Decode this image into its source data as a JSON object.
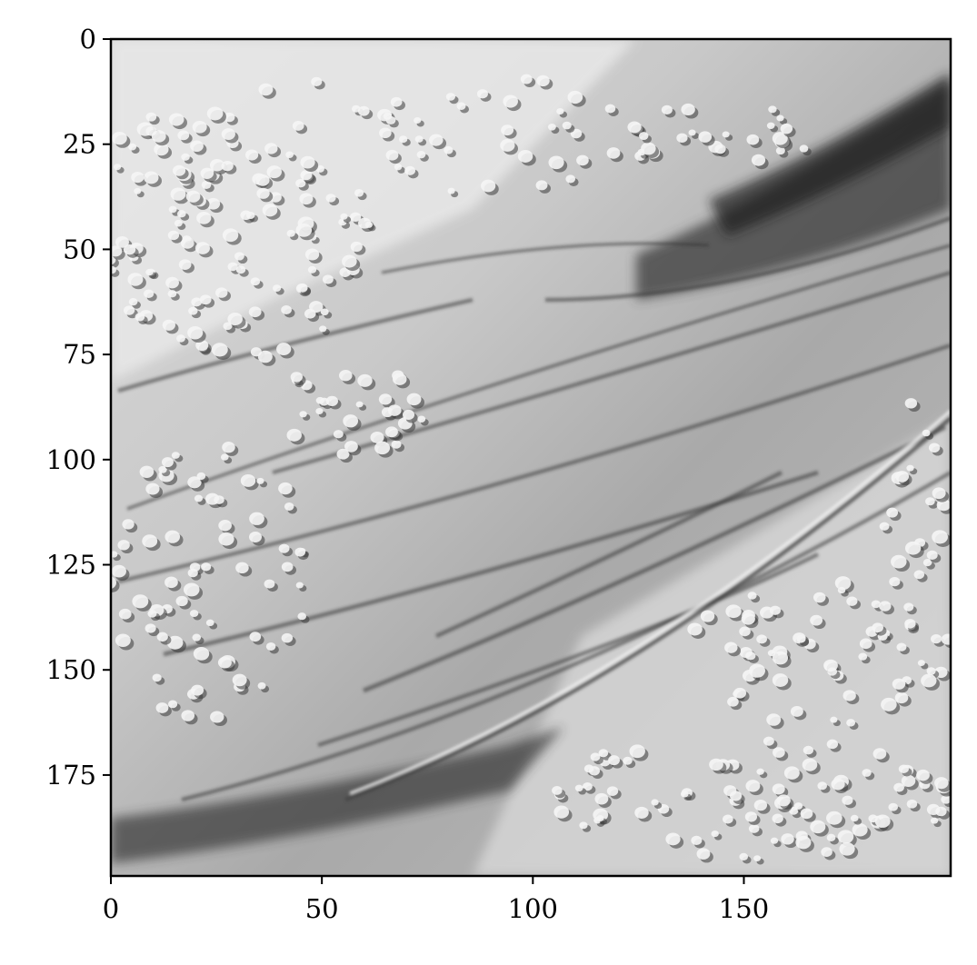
{
  "image": {
    "type": "hillshade-elevation-raster",
    "colormap": "gray",
    "extent": {
      "x": [
        0,
        199
      ],
      "y": [
        0,
        199
      ]
    },
    "description": "Shaded relief of a slope cut by diagonal gullies with many small bumps (tree crowns) in upper-left and lower-right areas"
  },
  "axes": {
    "x": {
      "ticks": [
        0,
        50,
        100,
        150
      ],
      "labels": [
        "0",
        "50",
        "100",
        "150"
      ],
      "range": [
        0,
        199
      ]
    },
    "y": {
      "ticks": [
        0,
        25,
        50,
        75,
        100,
        125,
        150,
        175
      ],
      "labels": [
        "0",
        "25",
        "50",
        "75",
        "100",
        "125",
        "150",
        "175"
      ],
      "range": [
        0,
        199
      ],
      "inverted": true
    }
  },
  "colors": {
    "frame": "#000000",
    "light": "#e6e6e6",
    "mid": "#a8a8a8",
    "dark": "#2a2a2a"
  }
}
